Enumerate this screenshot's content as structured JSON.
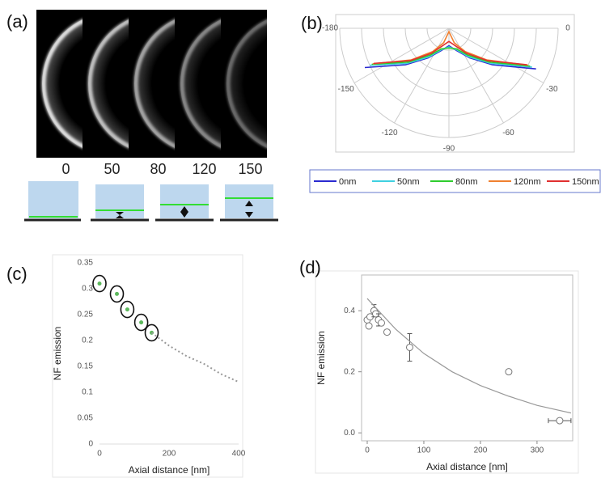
{
  "chart_data": [
    {
      "label": "(a)",
      "type": "image",
      "categories": [
        "0",
        "50",
        "80",
        "120",
        "150"
      ]
    },
    {
      "label": "(b)",
      "type": "polar",
      "theta": [
        -155,
        -140,
        -125,
        -110,
        -90,
        -70,
        -55,
        -40,
        -25
      ],
      "rlim": [
        0,
        1
      ],
      "rticks": [
        0.2,
        0.4,
        0.6,
        0.8,
        1
      ],
      "thetaticks": [
        -180,
        -150,
        -120,
        -90,
        -60,
        -30,
        0
      ],
      "legend": "bottom",
      "series": [
        {
          "name": "0nm",
          "color": "#2a2ad0",
          "values": [
            0.85,
            0.52,
            0.33,
            0.22,
            0.16,
            0.22,
            0.33,
            0.52,
            0.88
          ]
        },
        {
          "name": "50nm",
          "color": "#3fd0e0",
          "values": [
            0.8,
            0.5,
            0.32,
            0.21,
            0.17,
            0.21,
            0.32,
            0.5,
            0.84
          ]
        },
        {
          "name": "80nm",
          "color": "#2ecc2e",
          "values": [
            0.78,
            0.48,
            0.3,
            0.2,
            0.18,
            0.2,
            0.3,
            0.48,
            0.82
          ]
        },
        {
          "name": "120nm",
          "color": "#f08030",
          "values": [
            0.77,
            0.45,
            0.26,
            0.14,
            0.03,
            0.14,
            0.26,
            0.45,
            0.8
          ]
        },
        {
          "name": "150nm",
          "color": "#e03030",
          "values": [
            0.76,
            0.46,
            0.28,
            0.17,
            0.12,
            0.17,
            0.28,
            0.46,
            0.79
          ]
        }
      ]
    },
    {
      "label": "(c)",
      "type": "scatter",
      "xlabel": "Axial distance [nm]",
      "ylabel": "NF emission",
      "xlim": [
        0,
        400
      ],
      "ylim": [
        0,
        0.35
      ],
      "xticks": [
        0,
        200,
        400
      ],
      "yticks": [
        0,
        0.05,
        0.1,
        0.15,
        0.2,
        0.25,
        0.3,
        0.35
      ],
      "series": [
        {
          "color": "#5cb85c",
          "mode": "markers",
          "highlight": true,
          "x": [
            0,
            50,
            80,
            120,
            150
          ],
          "values": [
            0.31,
            0.29,
            0.26,
            0.235,
            0.215
          ]
        },
        {
          "color": "#999999",
          "mode": "dotted",
          "x": [
            150,
            200,
            250,
            300,
            350,
            400
          ],
          "values": [
            0.215,
            0.19,
            0.17,
            0.155,
            0.135,
            0.12
          ]
        }
      ]
    },
    {
      "label": "(d)",
      "type": "scatter",
      "xlabel": "Axial distance [nm]",
      "ylabel": "NF emission",
      "xlim": [
        -10,
        363
      ],
      "ylim": [
        -0.026,
        0.517
      ],
      "xticks": [
        0,
        100,
        200,
        300
      ],
      "yticks": [
        {
          "value": 0,
          "label": "0.0"
        },
        {
          "value": 0.2,
          "label": "0.2"
        },
        {
          "value": 0.4,
          "label": "0.4"
        }
      ],
      "series": [
        {
          "color": "#777777",
          "mode": "open",
          "x": [
            0,
            3,
            5,
            12,
            15,
            20,
            25,
            35,
            75,
            250,
            340
          ],
          "values": [
            0.37,
            0.35,
            0.38,
            0.4,
            0.39,
            0.37,
            0.36,
            0.33,
            0.28,
            0.2,
            0.04
          ],
          "yerr": [
            null,
            null,
            null,
            0.02,
            null,
            0.02,
            null,
            null,
            0.045,
            null,
            null
          ],
          "xerr": [
            null,
            null,
            null,
            null,
            null,
            null,
            null,
            null,
            null,
            null,
            20
          ]
        },
        {
          "color": "#999999",
          "mode": "line",
          "x": [
            0,
            50,
            100,
            150,
            200,
            250,
            300,
            360
          ],
          "values": [
            0.44,
            0.34,
            0.26,
            0.2,
            0.155,
            0.12,
            0.09,
            0.065
          ]
        }
      ]
    }
  ]
}
